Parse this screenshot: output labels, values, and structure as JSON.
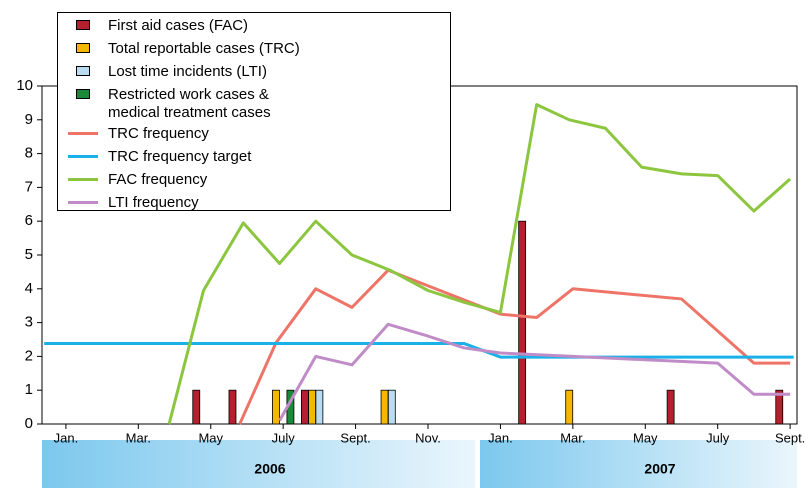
{
  "chart_data": {
    "type": "combo",
    "xlim": [
      -0.66,
      20.19
    ],
    "xticks": [
      {
        "value": 0,
        "label": "Jan."
      },
      {
        "value": 2,
        "label": "Mar."
      },
      {
        "value": 4,
        "label": "May"
      },
      {
        "value": 6,
        "label": "July"
      },
      {
        "value": 8,
        "label": "Sept."
      },
      {
        "value": 10,
        "label": "Nov."
      },
      {
        "value": 12,
        "label": "Jan."
      },
      {
        "value": 14,
        "label": "Mar."
      },
      {
        "value": 16,
        "label": "May"
      },
      {
        "value": 18,
        "label": "July"
      },
      {
        "value": 20,
        "label": "Sept."
      }
    ],
    "ylim": [
      0,
      10
    ],
    "yticks": [
      0,
      1,
      2,
      3,
      4,
      5,
      6,
      7,
      8,
      9,
      10
    ],
    "years": [
      "2006",
      "2007"
    ],
    "series": [
      {
        "name": "First aid cases (FAC)",
        "type": "bar",
        "color": "#b5202e",
        "x": [
          3.6,
          4.6,
          6.6,
          12.6,
          16.7,
          19.7
        ],
        "values": [
          1,
          1,
          1,
          6,
          1,
          1
        ]
      },
      {
        "name": "Total reportable cases (TRC)",
        "type": "bar",
        "color": "#f5b800",
        "x": [
          5.8,
          6.8,
          8.8,
          13.9
        ],
        "values": [
          1,
          1,
          1,
          1
        ]
      },
      {
        "name": "Lost time incidents (LTI)",
        "type": "bar",
        "color": "#b9dcf2",
        "x": [
          7.0,
          9.0
        ],
        "values": [
          1,
          1
        ]
      },
      {
        "name": "Restricted work cases &\nmedical treatment cases",
        "type": "bar",
        "color": "#1a8a3a",
        "x": [
          6.2
        ],
        "values": [
          1
        ]
      },
      {
        "name": "TRC frequency",
        "type": "line",
        "color": "#ee7468",
        "x": [
          4.8,
          5.8,
          6.9,
          7.9,
          8.9,
          12.0,
          13.0,
          14.0,
          17.0,
          19.0,
          20.0
        ],
        "values": [
          0,
          2.4,
          4.0,
          3.45,
          4.55,
          3.25,
          3.15,
          4.0,
          3.7,
          1.8,
          1.8
        ]
      },
      {
        "name": "TRC frequency target",
        "type": "line",
        "color": "#1ab0e8",
        "x": [
          -0.6,
          11.0,
          12.0,
          20.1
        ],
        "values": [
          2.38,
          2.38,
          1.98,
          1.98
        ]
      },
      {
        "name": "FAC frequency",
        "type": "line",
        "color": "#8cc63f",
        "x": [
          2.85,
          3.8,
          4.9,
          5.9,
          6.9,
          7.9,
          8.95,
          10.0,
          11.0,
          12.0,
          13.0,
          13.9,
          14.9,
          15.9,
          17.0,
          18.0,
          19.0,
          20.0
        ],
        "values": [
          0,
          3.95,
          5.95,
          4.75,
          6.0,
          5.0,
          4.55,
          3.95,
          3.6,
          3.3,
          9.45,
          9.0,
          8.75,
          7.6,
          7.4,
          7.35,
          6.3,
          7.25
        ]
      },
      {
        "name": "LTI frequency",
        "type": "line",
        "color": "#c08cc8",
        "x": [
          5.9,
          6.9,
          7.9,
          8.9,
          10.0,
          11.0,
          12.0,
          14.0,
          16.0,
          18.0,
          19.0,
          20.0
        ],
        "values": [
          0.1,
          2.0,
          1.75,
          2.95,
          2.6,
          2.25,
          2.1,
          2.0,
          1.9,
          1.8,
          0.88,
          0.88
        ]
      }
    ]
  }
}
